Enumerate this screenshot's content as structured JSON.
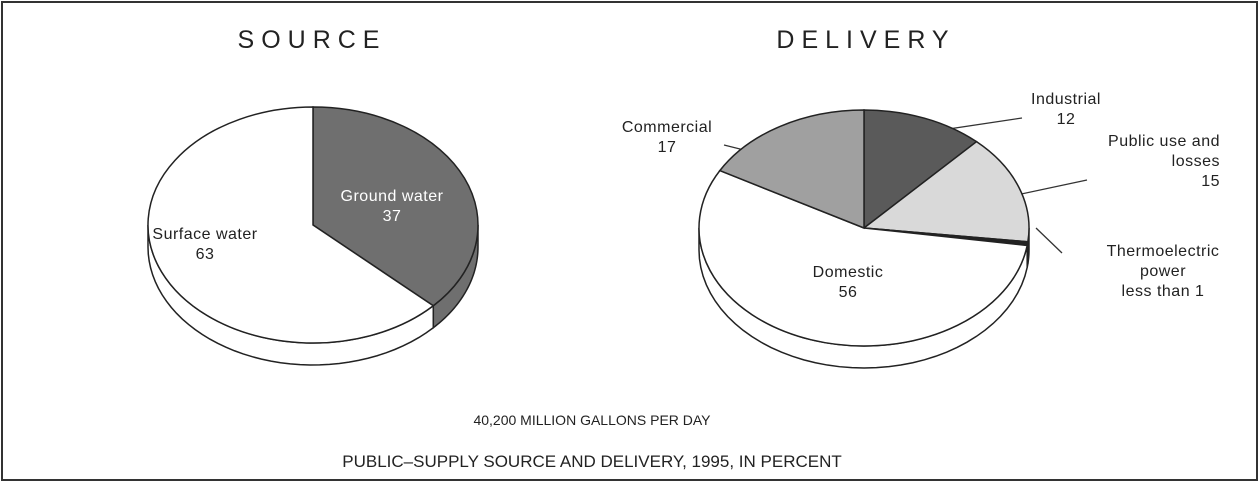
{
  "chart_data": [
    {
      "type": "pie",
      "title": "SOURCE",
      "categories": [
        "Ground water",
        "Surface water"
      ],
      "values": [
        37,
        63
      ],
      "colors": [
        "#6f6f6f",
        "#ffffff"
      ]
    },
    {
      "type": "pie",
      "title": "DELIVERY",
      "categories": [
        "Industrial",
        "Public use and losses",
        "Thermoelectric power",
        "Domestic",
        "Commercial"
      ],
      "values": [
        12,
        15,
        0.5,
        56,
        17
      ],
      "value_labels": [
        "12",
        "15",
        "less than 1",
        "56",
        "17"
      ],
      "colors": [
        "#5a5a5a",
        "#d9d9d9",
        "#222222",
        "#ffffff",
        "#a0a0a0"
      ]
    }
  ],
  "note": "40,200 MILLION GALLONS PER DAY",
  "caption": "PUBLIC–SUPPLY SOURCE AND DELIVERY, 1995, IN PERCENT"
}
